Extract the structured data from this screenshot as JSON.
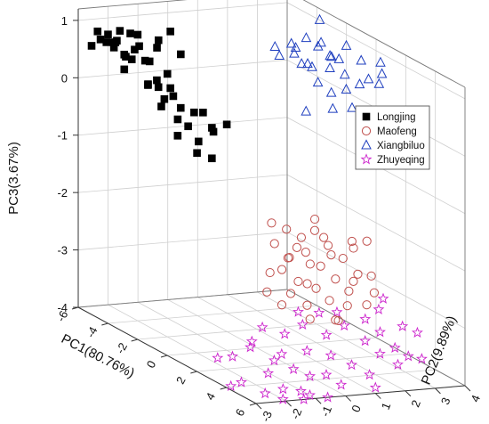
{
  "chart_data": {
    "type": "scatter",
    "dimensions": 3,
    "xlabel": "PC1(80.76%)",
    "ylabel": "PC2(9.89%)",
    "zlabel": "PC3(3.67%)",
    "x_ticks": [
      "-6",
      "-4",
      "-2",
      "0",
      "2",
      "4",
      "6"
    ],
    "y_ticks": [
      "-3",
      "-2",
      "-1",
      "0",
      "1",
      "2",
      "3",
      "4"
    ],
    "z_ticks": [
      "-4",
      "-3",
      "-2",
      "-1",
      "0",
      "1"
    ],
    "xlim": [
      -6,
      6
    ],
    "ylim": [
      -3,
      4
    ],
    "zlim": [
      -4,
      1.2
    ],
    "grid": true,
    "legend_position": "right",
    "colors": {
      "Longjing": "#000000",
      "Maofeng": "#c0504d",
      "Xiangbiluo": "#1f3fbf",
      "Zhuyeqing": "#cc22cc"
    },
    "series": [
      {
        "name": "Longjing",
        "marker": "square",
        "points": [
          [
            -5.5,
            -2.6,
            0.86
          ],
          [
            -5.2,
            -2.4,
            0.84
          ],
          [
            -5.1,
            -2.7,
            0.78
          ],
          [
            -4.9,
            -2.3,
            0.74
          ],
          [
            -4.8,
            -2.2,
            0.95
          ],
          [
            -4.6,
            -2.5,
            0.7
          ],
          [
            -4.5,
            -2.8,
            0.82
          ],
          [
            -4.3,
            -2.1,
            0.97
          ],
          [
            -4.2,
            -2.6,
            0.88
          ],
          [
            -4.0,
            -2.4,
            0.62
          ],
          [
            -3.9,
            -2.0,
            0.8
          ],
          [
            -3.8,
            -2.9,
            0.92
          ],
          [
            -3.6,
            -2.2,
            1.05
          ],
          [
            -3.5,
            -2.7,
            0.74
          ],
          [
            -3.4,
            -1.9,
            0.6
          ],
          [
            -3.2,
            -2.5,
            0.86
          ],
          [
            -3.0,
            -1.8,
            1.02
          ],
          [
            -2.9,
            -2.3,
            0.7
          ],
          [
            -2.7,
            -2.0,
            0.94
          ],
          [
            -2.6,
            -1.6,
            1.22
          ],
          [
            -2.5,
            -2.4,
            0.35
          ],
          [
            -2.4,
            -2.1,
            0.3
          ],
          [
            -2.2,
            -1.9,
            0.55
          ],
          [
            -2.1,
            -2.6,
            0.4
          ],
          [
            -1.9,
            -1.6,
            0.92
          ],
          [
            -1.8,
            -2.2,
            0.18
          ],
          [
            -1.6,
            -2.0,
            0.25
          ],
          [
            -1.5,
            -1.8,
            0.05
          ],
          [
            -1.4,
            -2.5,
            0.12
          ],
          [
            -1.2,
            -1.5,
            0.0
          ],
          [
            -1.1,
            -2.1,
            -0.08
          ],
          [
            -1.0,
            -1.8,
            -0.2
          ],
          [
            -0.8,
            -1.4,
            0.05
          ],
          [
            -0.7,
            -2.3,
            -0.3
          ],
          [
            -0.5,
            -1.7,
            -0.4
          ],
          [
            -0.3,
            -1.3,
            -0.22
          ],
          [
            -0.2,
            -1.9,
            -0.55
          ],
          [
            0.0,
            -1.5,
            -0.1
          ],
          [
            0.2,
            -1.6,
            -0.6
          ],
          [
            0.4,
            -1.2,
            0.0
          ],
          [
            -5.3,
            -2.9,
            0.65
          ],
          [
            -4.4,
            -2.0,
            0.5
          ],
          [
            -3.7,
            -2.6,
            0.45
          ],
          [
            -2.8,
            -1.5,
            0.2
          ],
          [
            -1.3,
            -2.7,
            0.6
          ]
        ]
      },
      {
        "name": "Maofeng",
        "marker": "circle",
        "points": [
          [
            0.6,
            0.2,
            -1.75
          ],
          [
            0.8,
            0.6,
            -1.85
          ],
          [
            1.0,
            0.1,
            -2.05
          ],
          [
            1.2,
            0.9,
            -1.95
          ],
          [
            1.4,
            0.4,
            -2.25
          ],
          [
            1.5,
            1.2,
            -1.8
          ],
          [
            1.7,
            0.0,
            -2.4
          ],
          [
            1.9,
            0.7,
            -2.1
          ],
          [
            2.0,
            1.4,
            -2.0
          ],
          [
            2.2,
            0.3,
            -2.55
          ],
          [
            2.3,
            1.0,
            -2.3
          ],
          [
            2.5,
            -0.1,
            -2.7
          ],
          [
            2.6,
            1.6,
            -2.15
          ],
          [
            2.8,
            0.6,
            -2.6
          ],
          [
            2.9,
            1.2,
            -2.45
          ],
          [
            3.0,
            0.2,
            -2.85
          ],
          [
            3.2,
            1.8,
            -2.35
          ],
          [
            3.3,
            0.8,
            -2.75
          ],
          [
            3.4,
            1.4,
            -2.6
          ],
          [
            3.6,
            0.0,
            -3.0
          ],
          [
            0.7,
            1.0,
            -2.2
          ],
          [
            1.1,
            1.7,
            -2.0
          ],
          [
            1.6,
            0.9,
            -2.7
          ],
          [
            2.1,
            -0.2,
            -2.95
          ],
          [
            2.4,
            2.0,
            -1.9
          ],
          [
            2.7,
            1.9,
            -2.55
          ],
          [
            3.1,
            1.5,
            -2.9
          ],
          [
            3.5,
            2.2,
            -2.65
          ],
          [
            3.7,
            0.9,
            -3.05
          ],
          [
            1.3,
            -0.2,
            -2.5
          ],
          [
            0.9,
            1.5,
            -1.7
          ],
          [
            1.8,
            1.6,
            -2.2
          ],
          [
            2.6,
            0.5,
            -2.2
          ],
          [
            3.3,
            1.0,
            -3.1
          ],
          [
            0.5,
            0.8,
            -2.4
          ],
          [
            1.9,
            2.3,
            -2.1
          ],
          [
            2.9,
            2.4,
            -2.45
          ],
          [
            3.8,
            1.8,
            -2.8
          ],
          [
            1.5,
            -0.4,
            -2.8
          ],
          [
            2.2,
            2.6,
            -1.95
          ]
        ]
      },
      {
        "name": "Xiangbiluo",
        "marker": "triangle",
        "points": [
          [
            -3.2,
            2.2,
            0.7
          ],
          [
            -2.9,
            2.6,
            0.78
          ],
          [
            -2.7,
            2.1,
            0.62
          ],
          [
            -2.5,
            2.9,
            0.92
          ],
          [
            -2.3,
            2.4,
            0.7
          ],
          [
            -2.1,
            3.1,
            0.82
          ],
          [
            -2.0,
            2.7,
            0.55
          ],
          [
            -1.8,
            2.2,
            0.88
          ],
          [
            -1.6,
            3.3,
            0.7
          ],
          [
            -1.5,
            2.9,
            0.98
          ],
          [
            -1.3,
            2.5,
            0.6
          ],
          [
            -1.1,
            3.0,
            0.8
          ],
          [
            -1.0,
            2.0,
            0.72
          ],
          [
            -0.8,
            3.4,
            1.0
          ],
          [
            -0.7,
            2.8,
            0.65
          ],
          [
            -0.5,
            2.3,
            0.45
          ],
          [
            -0.3,
            3.1,
            0.58
          ],
          [
            -0.2,
            2.6,
            0.3
          ],
          [
            0.0,
            3.5,
            0.85
          ],
          [
            0.2,
            2.9,
            0.4
          ],
          [
            0.3,
            2.4,
            0.1
          ],
          [
            0.5,
            3.2,
            0.52
          ],
          [
            0.7,
            3.8,
            0.9
          ],
          [
            0.9,
            3.3,
            0.66
          ],
          [
            1.0,
            2.7,
            0.2
          ],
          [
            1.2,
            3.6,
            0.78
          ],
          [
            -2.6,
            3.4,
            1.2
          ],
          [
            -1.9,
            3.7,
            0.6
          ],
          [
            -0.9,
            2.1,
            -0.1
          ],
          [
            0.4,
            3.9,
            0.48
          ]
        ]
      },
      {
        "name": "Zhuyeqing",
        "marker": "star",
        "points": [
          [
            2.8,
            -1.2,
            -3.2
          ],
          [
            3.1,
            -0.6,
            -3.3
          ],
          [
            3.3,
            -1.8,
            -3.35
          ],
          [
            3.5,
            -0.2,
            -3.1
          ],
          [
            3.7,
            -1.0,
            -3.55
          ],
          [
            3.9,
            0.4,
            -3.25
          ],
          [
            4.0,
            -1.4,
            -3.6
          ],
          [
            4.2,
            -0.4,
            -3.45
          ],
          [
            4.3,
            0.8,
            -3.05
          ],
          [
            4.5,
            -1.0,
            -3.7
          ],
          [
            4.6,
            0.2,
            -3.5
          ],
          [
            4.8,
            -0.6,
            -3.8
          ],
          [
            4.9,
            1.2,
            -3.25
          ],
          [
            5.1,
            -0.2,
            -3.75
          ],
          [
            5.2,
            0.6,
            -3.6
          ],
          [
            5.4,
            -1.2,
            -3.95
          ],
          [
            5.5,
            1.4,
            -3.4
          ],
          [
            5.7,
            0.0,
            -3.85
          ],
          [
            5.8,
            0.9,
            -3.7
          ],
          [
            6.0,
            -0.6,
            -4.0
          ],
          [
            3.0,
            0.6,
            -3.0
          ],
          [
            3.4,
            1.0,
            -2.95
          ],
          [
            3.6,
            -2.0,
            -3.4
          ],
          [
            4.1,
            1.6,
            -3.0
          ],
          [
            4.4,
            -1.8,
            -3.75
          ],
          [
            4.7,
            1.8,
            -3.15
          ],
          [
            5.0,
            -1.6,
            -3.95
          ],
          [
            5.3,
            2.0,
            -3.35
          ],
          [
            5.6,
            -1.0,
            -4.0
          ],
          [
            5.9,
            1.8,
            -3.55
          ],
          [
            3.2,
            -2.4,
            -3.6
          ],
          [
            3.8,
            2.2,
            -2.9
          ],
          [
            4.2,
            -2.6,
            -3.9
          ],
          [
            4.6,
            2.6,
            -3.1
          ],
          [
            5.0,
            -2.2,
            -4.0
          ],
          [
            5.4,
            2.4,
            -3.5
          ],
          [
            5.8,
            -2.0,
            -4.0
          ],
          [
            6.0,
            1.0,
            -3.9
          ],
          [
            2.6,
            -2.6,
            -3.7
          ],
          [
            3.9,
            -2.8,
            -4.0
          ],
          [
            4.8,
            3.0,
            -3.2
          ],
          [
            5.5,
            2.8,
            -3.55
          ],
          [
            2.4,
            0.2,
            -3.05
          ],
          [
            3.3,
            2.6,
            -2.8
          ],
          [
            6.0,
            -1.4,
            -4.0
          ]
        ]
      }
    ]
  }
}
